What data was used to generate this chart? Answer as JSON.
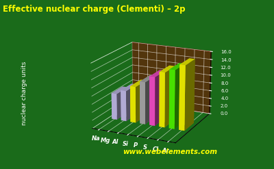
{
  "title": "Effective nuclear charge (Clementi) – 2p",
  "elements": [
    "Na",
    "Mg",
    "Al",
    "Si",
    "P",
    "S",
    "Cl",
    "Ar"
  ],
  "values": [
    6.57,
    7.64,
    9.02,
    10.53,
    12.13,
    13.57,
    14.48,
    15.94
  ],
  "bar_colors": [
    "#c8c0f0",
    "#c8c0f0",
    "#ffff00",
    "#b0b0b0",
    "#ff50d0",
    "#ffff00",
    "#50ff00",
    "#ffff00"
  ],
  "background_color": "#1a6b1a",
  "floor_color": "#8b0000",
  "ylabel": "nuclear charge units",
  "ylim": [
    0.0,
    16.0
  ],
  "yticks": [
    0.0,
    2.0,
    4.0,
    6.0,
    8.0,
    10.0,
    12.0,
    14.0,
    16.0
  ],
  "title_color": "#ffff00",
  "watermark": "www.webelements.com",
  "watermark_color": "#ffff00",
  "elev": 18,
  "azim": -65
}
